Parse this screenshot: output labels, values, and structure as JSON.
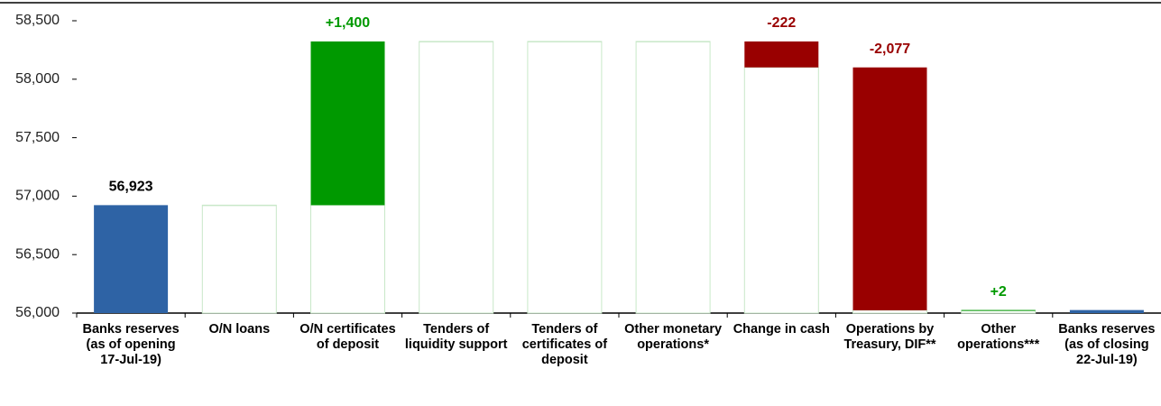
{
  "chart_data": {
    "type": "waterfall",
    "categories": [
      "Banks reserves (as of opening 17-Jul-19)",
      "O/N loans",
      "O/N certificates of deposit",
      "Tenders of liquidity support",
      "Tenders of certificates of deposit",
      "Other monetary operations*",
      "Change in cash",
      "Operations by Treasury, DIF**",
      "Other operations***",
      "Banks reserves (as of closing 22-Jul-19)"
    ],
    "values": [
      56923,
      0,
      1400,
      0,
      0,
      0,
      -222,
      -2077,
      2,
      56026
    ],
    "value_labels": [
      "56,923",
      null,
      "+1,400",
      null,
      null,
      null,
      "-222",
      "-2,077",
      "+2",
      null
    ],
    "colors": {
      "total": "#2e63a5",
      "increase": "#009900",
      "decrease": "#990000",
      "empty": "#c8e8c8"
    },
    "ylim": [
      56000,
      58500
    ],
    "yticks": [
      {
        "value": 56000,
        "label": "56,000"
      },
      {
        "value": 56500,
        "label": "56,500"
      },
      {
        "value": 57000,
        "label": "57,000"
      },
      {
        "value": 57500,
        "label": "57,500"
      },
      {
        "value": 58000,
        "label": "58,000"
      },
      {
        "value": 58500,
        "label": "58,500"
      }
    ]
  }
}
